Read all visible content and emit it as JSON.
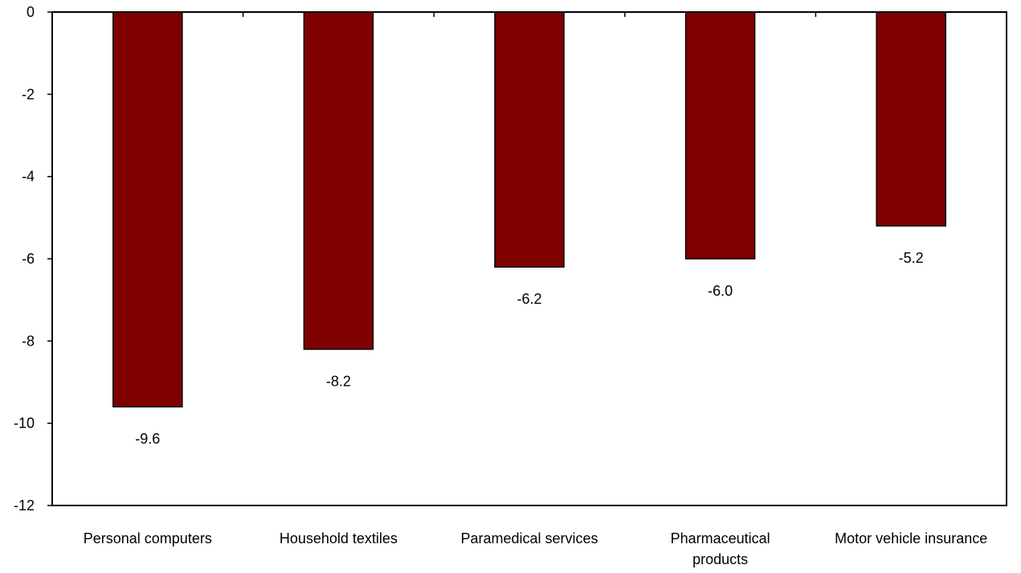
{
  "chart_data": {
    "type": "bar",
    "categories": [
      [
        "Personal computers"
      ],
      [
        "Household textiles"
      ],
      [
        "Paramedical services"
      ],
      [
        "Pharmaceutical",
        "products"
      ],
      [
        "Motor vehicle insurance"
      ]
    ],
    "values": [
      -9.6,
      -8.2,
      -6.2,
      -6.0,
      -5.2
    ],
    "data_labels": [
      "-9.6",
      "-8.2",
      "-6.2",
      "-6.0",
      "-5.2"
    ],
    "title": "",
    "xlabel": "",
    "ylabel": "",
    "ylim": [
      -12,
      0
    ],
    "yticks": [
      0,
      -2,
      -4,
      -6,
      -8,
      -10,
      -12
    ],
    "grid": false,
    "legend": "none",
    "bar_color": "#800000",
    "bar_edge_color": "#000000",
    "axis_color": "#000000"
  }
}
